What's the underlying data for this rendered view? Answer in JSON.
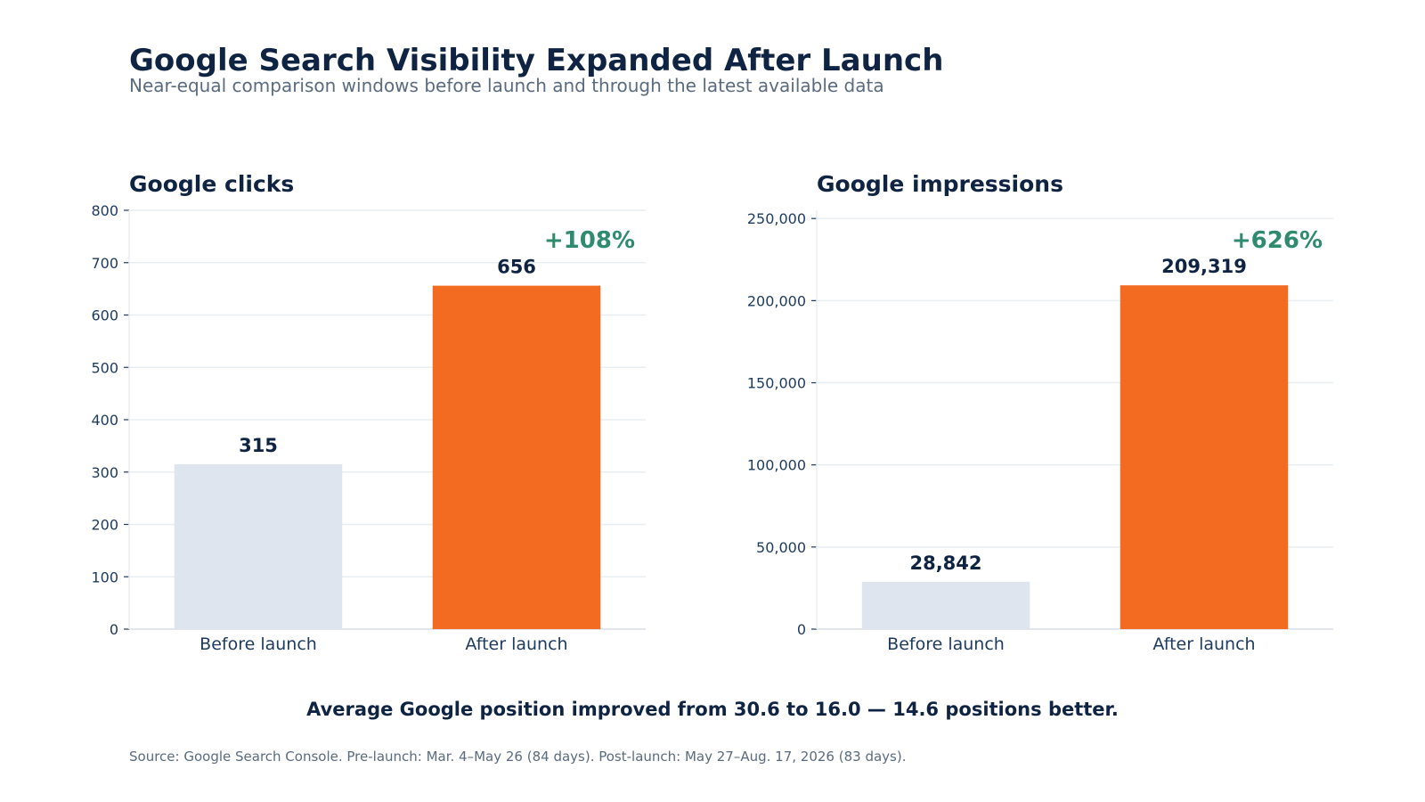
{
  "header": {
    "title": "Google Search Visibility Expanded After Launch",
    "subtitle": "Near-equal comparison windows before launch and through the latest available data"
  },
  "colors": {
    "before": "#dfe5ee",
    "after": "#f26b21",
    "change": "#2e8b6e",
    "text": "#0f2342",
    "axis": "#1d3a5f",
    "grid": "#e8edf2"
  },
  "chart_data": [
    {
      "type": "bar",
      "title": "Google clicks",
      "categories": [
        "Before launch",
        "After launch"
      ],
      "values": [
        315,
        656
      ],
      "value_labels": [
        "315",
        "656"
      ],
      "change_label": "+108%",
      "ylim": [
        0,
        800
      ],
      "yticks": [
        0,
        100,
        200,
        300,
        400,
        500,
        600,
        700,
        800
      ],
      "ytick_labels": [
        "0",
        "100",
        "200",
        "300",
        "400",
        "500",
        "600",
        "700",
        "800"
      ],
      "grid": true,
      "xlabel": "",
      "ylabel": ""
    },
    {
      "type": "bar",
      "title": "Google impressions",
      "categories": [
        "Before launch",
        "After launch"
      ],
      "values": [
        28842,
        209319
      ],
      "value_labels": [
        "28,842",
        "209,319"
      ],
      "change_label": "+626%",
      "ylim": [
        0,
        255000
      ],
      "yticks": [
        0,
        50000,
        100000,
        150000,
        200000,
        250000
      ],
      "ytick_labels": [
        "0",
        "50,000",
        "100,000",
        "150,000",
        "200,000",
        "250,000"
      ],
      "grid": true,
      "xlabel": "",
      "ylabel": ""
    }
  ],
  "footer": {
    "summary": "Average Google position improved from 30.6 to 16.0 — 14.6 positions better.",
    "source": "Source: Google Search Console. Pre-launch: Mar. 4–May 26 (84 days). Post-launch: May 27–Aug. 17, 2026 (83 days)."
  }
}
